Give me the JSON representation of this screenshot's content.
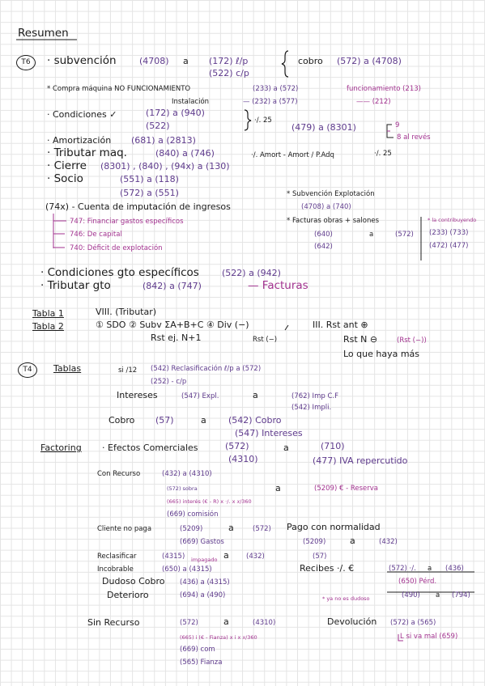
{
  "title": "Resumen",
  "t6": {
    "badge": "T6",
    "subvencion_label": "· subvención",
    "subvencion_acc": "(4708)",
    "subvencion_a": "a",
    "subvencion_lp": "(172) ℓ/p",
    "subvencion_cp": "(522) c/p",
    "cobro_label": "cobro",
    "cobro_acc": "(572)  a  (4708)",
    "compra_label": "* Compra máquina NO FUNCIONAMIENTO",
    "compra_acc": "(233)   a   (572)",
    "funcionamiento": "funcionamiento (213)",
    "instalacion_label": "Instalación",
    "instalacion_acc": "— (232)   a   (577)",
    "instalacion_212": "——  (212)",
    "condiciones_label": "· Condiciones ✓",
    "condiciones_acc": "(172)  a  (940)",
    "condiciones_522": "(522)",
    "pct25": "·/. 25",
    "cond_479": "(479)  a  (8301)",
    "nine": "9",
    "al_reves": "8 al revés",
    "amort_label": "· Amortización",
    "amort_acc": "(681)   a   (2813)",
    "tributar_label": "· Tributar  maq.",
    "tributar_acc": "(840)  a  (746)",
    "tributar_formula": "·/. Amort  -  Amort / P.Adq",
    "tributar_pct": "·/. 25",
    "cierre_label": "· Cierre",
    "cierre_acc": "(8301) , (840) , (94x)   a  (130)",
    "socio_label": "· Socio",
    "socio_acc": "(551)   a   (118)",
    "socio_acc2": "(572)   a   (551)",
    "subv_expl_label": "* Subvención  Explotación",
    "subv_expl_acc": "(4708)   a  (740)",
    "cuenta_label": "(74x) - Cuenta de imputación de ingresos",
    "c747": "747: Financiar gastos específicos",
    "c746": "746: De capital",
    "c740": "740: Déficit de explotación",
    "facturas_label": "* Facturas obras + salones",
    "fact_640": "(640)",
    "fact_a": "a",
    "fact_572": "(572)",
    "fact_642": "(642)",
    "contribuyendo": "* la contribuyendo",
    "c233_733": "(233)  (733)",
    "c472_477": "(472)  (477)",
    "cond_gto_label": "· Condiciones gto específicos",
    "cond_gto_acc": "(522)   a  (942)",
    "trib_gto_label": "· Tributar gto",
    "trib_gto_acc": "(842)   a   (747)",
    "facturas_word": "— Facturas"
  },
  "tablas_head": {
    "tabla1": "Tabla 1",
    "tabla1_val": "VIII. (Tributar)",
    "tabla2": "Tabla 2",
    "tabla2_val": "① SDO  ② Subv ΣA+B+C  ④ Div (−)",
    "rst_ej": "Rst ej. N+1",
    "rst_minus": "Rst (−)",
    "iii": "III.  Rst ant ⊕",
    "rst_n": "Rst N ⊖",
    "rst_n_note": "(Rst (−))",
    "lo_que": "Lo que haya más"
  },
  "t4": {
    "badge": "T4",
    "tablas": "Tablas",
    "si12": "si /12",
    "recla_acc": "(542) Reclasificación ℓ/p  a  (572)",
    "recla_252": "(252) - c/p",
    "intereses_label": "Intereses",
    "int_547": "(547) Expl.",
    "int_a": "a",
    "int_762": "(762)  Imp C.F",
    "int_542": "(542)  Impli.",
    "cobro_label": "Cobro",
    "cobro_57": "(57)",
    "cobro_a": "a",
    "cobro_542": "(542) Cobro",
    "cobro_547": "(547) Intereses"
  },
  "factoring": {
    "label": "Factoring",
    "efectos": "· Efectos  Comerciales",
    "ef_572": "(572)",
    "ef_4310": "(4310)",
    "ef_a": "a",
    "ef_710": "(710)",
    "ef_477": "(477) IVA repercutido",
    "con_recurso": "Con Recurso",
    "cr_432": "(432)  a  (4310)",
    "cr_572": "(572) sobra",
    "cr_665": "(665) interés (€ - R) x ·/. x 𝑥/360",
    "cr_669": "(669) comisión",
    "cr_a": "a",
    "cr_5209": "(5209)  € - Reserva",
    "cliente_label": "Cliente no paga",
    "cli_5209": "(5209)",
    "cli_a": "a",
    "cli_572": "(572)",
    "cli_669": "(669) Gastos",
    "pago_label": "Pago con normalidad",
    "pago_5209": "(5209)",
    "pago_a": "a",
    "pago_432": "(432)",
    "reclas_label": "Reclasificar",
    "reclas_acc": "(4315)",
    "reclas_impagado": "impagado",
    "reclas_a": "a",
    "reclas_432": "(432)",
    "reclas_57": "(57)",
    "incobrable_label": "Incobrable",
    "inc_acc": "(650)  a  (4315)",
    "recibes_label": "Recibes  ·/. €",
    "rec_572": "(572) ·/.",
    "rec_a": "a",
    "rec_436": "(436)",
    "rec_650": "(650) Pérd.",
    "dudoso_label": "Dudoso Cobro",
    "dud_acc": "(436)   a   (4315)",
    "deterioro_label": "Deterioro",
    "det_acc": "(694)   a   (490)",
    "ya_no": "* ya no es dudoso",
    "yano_490": "(490)",
    "yano_a": "a",
    "yano_794": "(794)",
    "sin_recurso": "Sin Recurso",
    "sr_572": "(572)",
    "sr_a": "a",
    "sr_4310": "(4310)",
    "sr_665": "(665) i (€ - Fianza) x i x 𝑥/360",
    "sr_669": "(669) com",
    "sr_565": "(565) Fianza",
    "devolucion_label": "Devolución",
    "dev_acc": "(572)   a   (565)",
    "dev_note": "L si va mal (659)"
  }
}
